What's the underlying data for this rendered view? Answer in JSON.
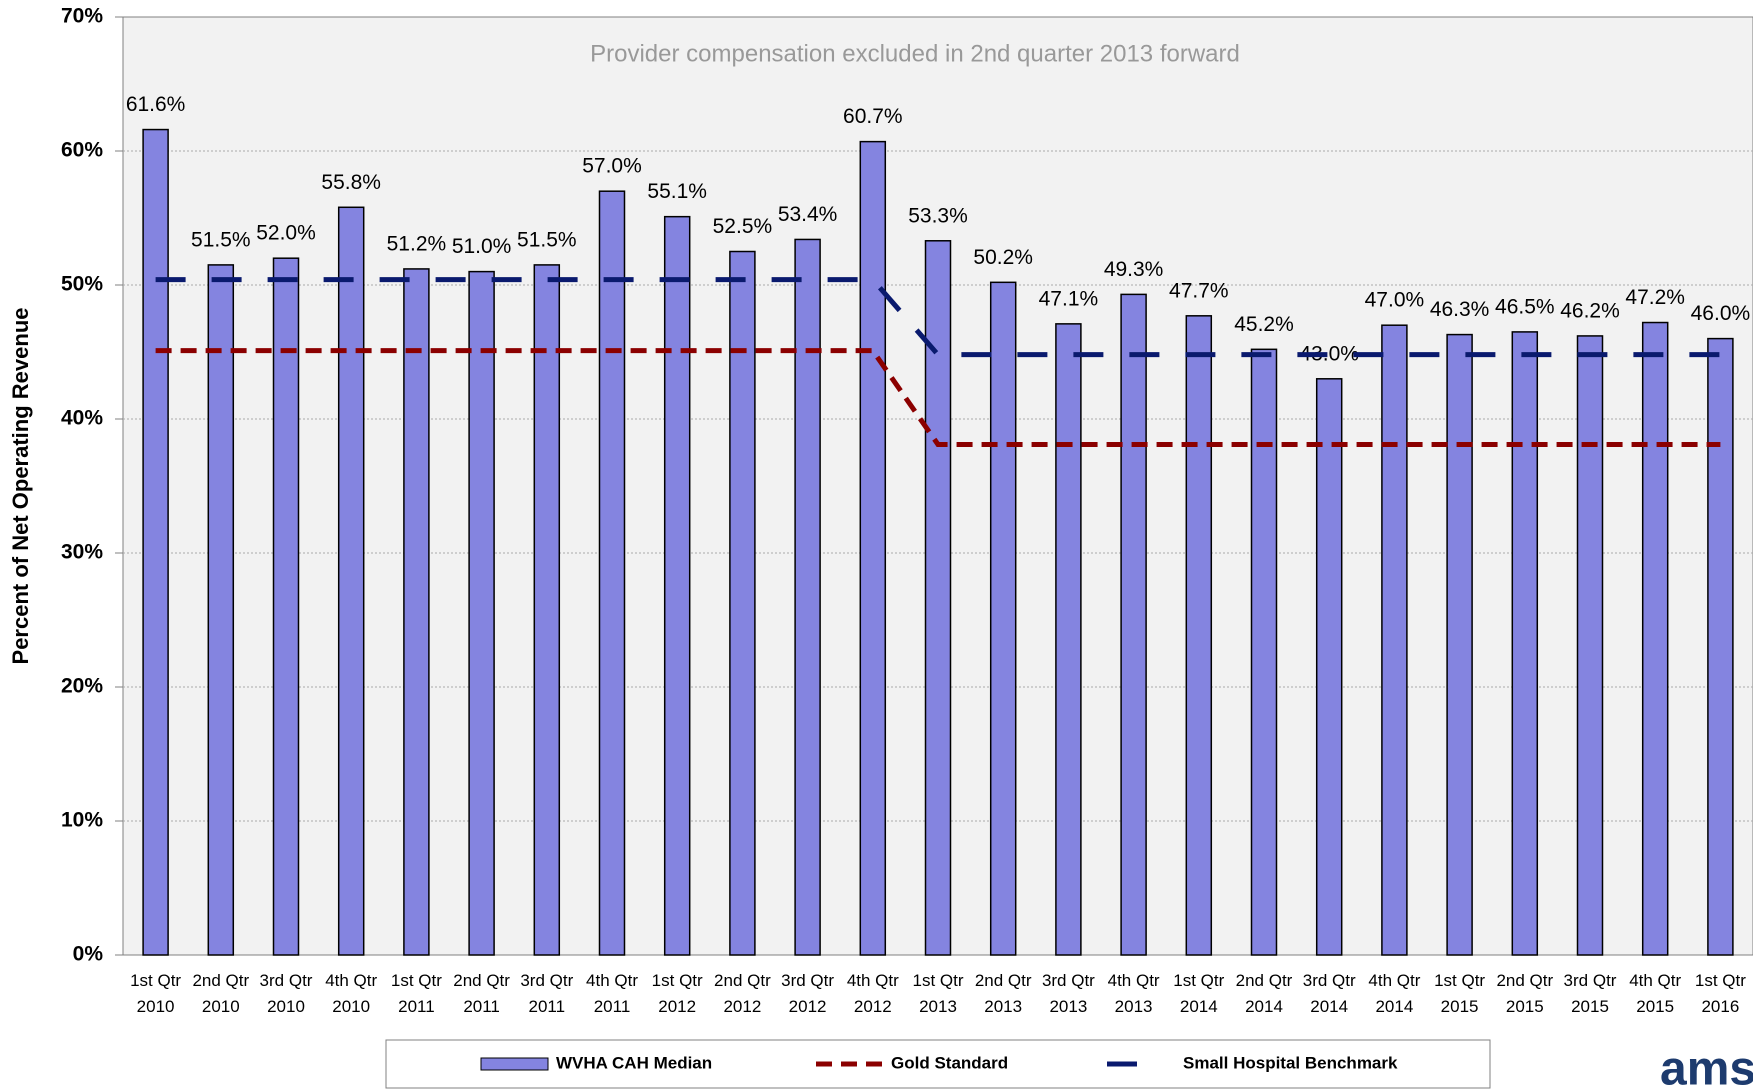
{
  "chart_data": {
    "type": "bar",
    "annotation": "Provider compensation excluded in 2nd quarter 2013 forward",
    "y_label": "Percent of Net Operating Revenue",
    "logo": "ams",
    "categories": [
      "1st Qtr 2010",
      "2nd Qtr 2010",
      "3rd Qtr 2010",
      "4th Qtr 2010",
      "1st Qtr 2011",
      "2nd Qtr 2011",
      "3rd Qtr 2011",
      "4th Qtr 2011",
      "1st Qtr 2012",
      "2nd Qtr 2012",
      "3rd Qtr 2012",
      "4th Qtr 2012",
      "1st Qtr 2013",
      "2nd Qtr 2013",
      "3rd Qtr 2013",
      "4th Qtr 2013",
      "1st Qtr 2014",
      "2nd Qtr 2014",
      "3rd Qtr 2014",
      "4th Qtr 2014",
      "1st Qtr 2015",
      "2nd Qtr 2015",
      "3rd Qtr 2015",
      "4th Qtr 2015",
      "1st Qtr 2016"
    ],
    "series": [
      {
        "name": "WVHA CAH Median",
        "type": "bar",
        "color": "#8484e0",
        "values": [
          61.6,
          51.5,
          52.0,
          55.8,
          51.2,
          51.0,
          51.5,
          57.0,
          55.1,
          52.5,
          53.4,
          60.7,
          53.3,
          50.2,
          47.1,
          49.3,
          47.7,
          45.2,
          43.0,
          47.0,
          46.3,
          46.5,
          46.2,
          47.2,
          46.0
        ],
        "value_labels": [
          "61.6%",
          "51.5%",
          "52.0%",
          "55.8%",
          "51.2%",
          "51.0%",
          "51.5%",
          "57.0%",
          "55.1%",
          "52.5%",
          "53.4%",
          "60.7%",
          "53.3%",
          "50.2%",
          "47.1%",
          "49.3%",
          "47.7%",
          "45.2%",
          "43.0%",
          "47.0%",
          "46.3%",
          "46.5%",
          "46.2%",
          "47.2%",
          "46.0%"
        ]
      },
      {
        "name": "Gold Standard",
        "type": "line",
        "color": "#8b0000",
        "dash": "short",
        "values": [
          45.1,
          45.1,
          45.1,
          45.1,
          45.1,
          45.1,
          45.1,
          45.1,
          45.1,
          45.1,
          45.1,
          45.1,
          38.1,
          38.1,
          38.1,
          38.1,
          38.1,
          38.1,
          38.1,
          38.1,
          38.1,
          38.1,
          38.1,
          38.1,
          38.1
        ]
      },
      {
        "name": "Small Hospital Benchmark",
        "type": "line",
        "color": "#0a1a6e",
        "dash": "long",
        "values": [
          50.4,
          50.4,
          50.4,
          50.4,
          50.4,
          50.4,
          50.4,
          50.4,
          50.4,
          50.4,
          50.4,
          50.4,
          44.8,
          44.8,
          44.8,
          44.8,
          44.8,
          44.8,
          44.8,
          44.8,
          44.8,
          44.8,
          44.8,
          44.8,
          44.8
        ]
      }
    ],
    "ylim": [
      0,
      70
    ],
    "yticks": [
      {
        "value": 0,
        "label": "0%"
      },
      {
        "value": 10,
        "label": "10%"
      },
      {
        "value": 20,
        "label": "20%"
      },
      {
        "value": 30,
        "label": "30%"
      },
      {
        "value": 40,
        "label": "40%"
      },
      {
        "value": 50,
        "label": "50%"
      },
      {
        "value": 60,
        "label": "60%"
      },
      {
        "value": 70,
        "label": "70%"
      }
    ],
    "grid": true,
    "legend": "bottom"
  }
}
